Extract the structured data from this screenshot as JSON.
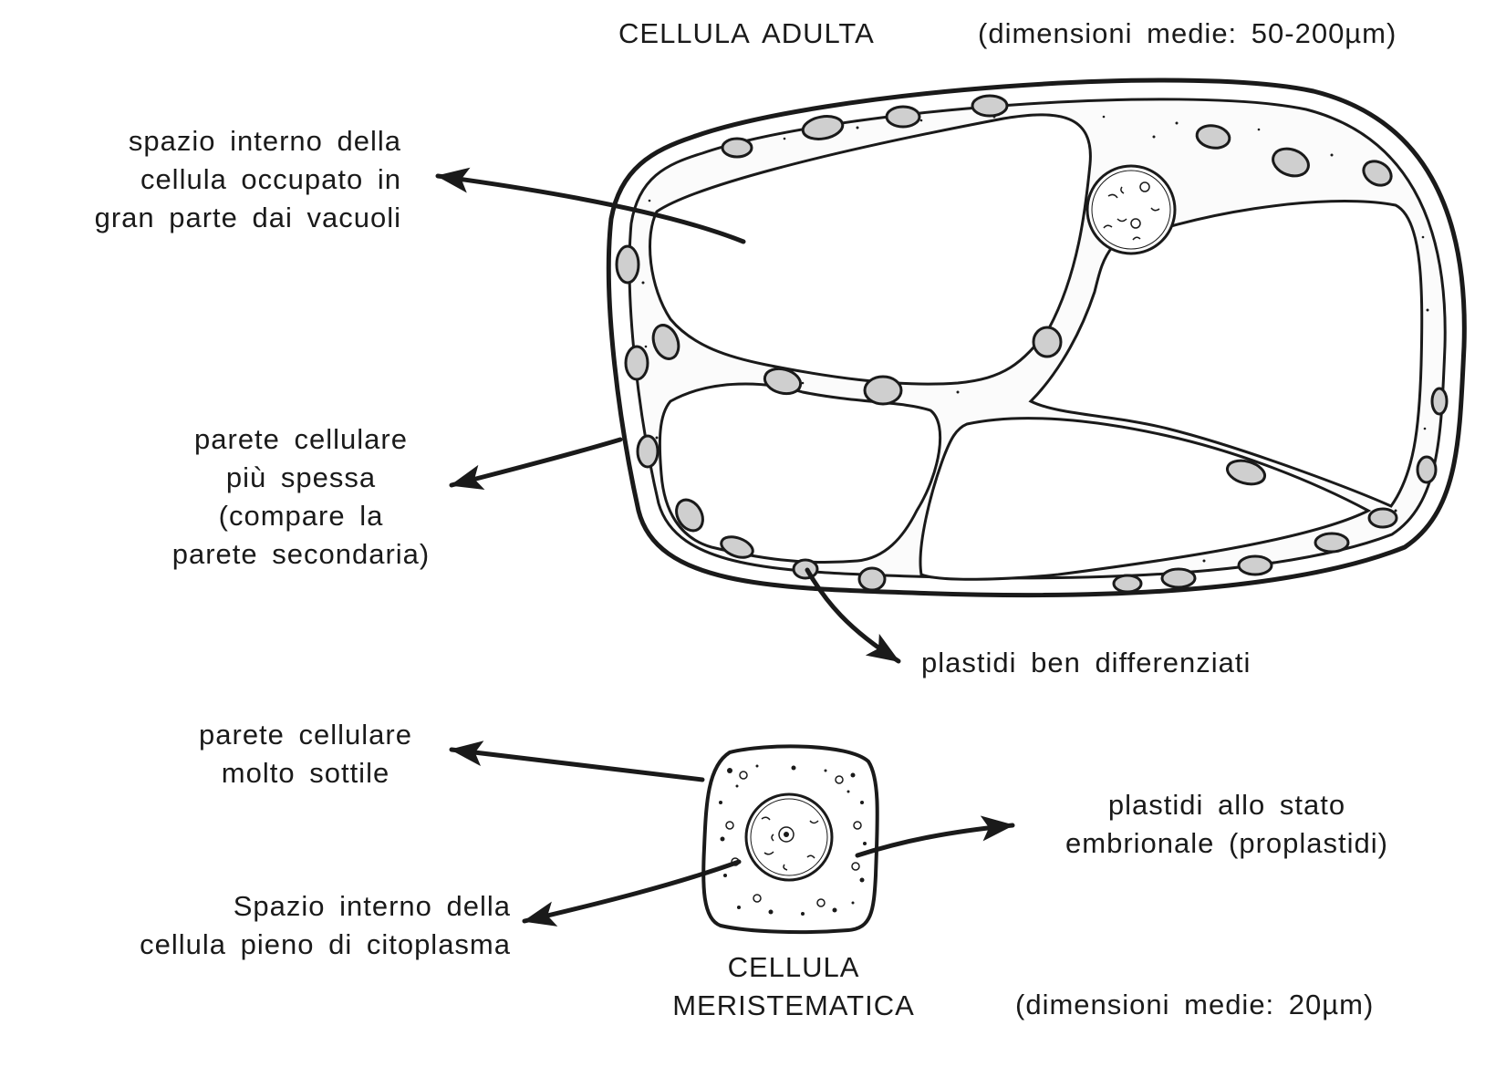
{
  "adult": {
    "title": "CELLULA ADULTA",
    "size": "(dimensioni medie: 50-200µm)"
  },
  "labels": {
    "vacuoli": [
      "spazio interno della",
      "cellula occupato in",
      "gran parte dai vacuoli"
    ],
    "parete_spessa": [
      "parete cellulare",
      "più spessa",
      "(compare la",
      "parete secondaria)"
    ],
    "plastidi_diff": [
      "plastidi ben differenziati"
    ],
    "parete_sottile": [
      "parete cellulare",
      "molto sottile"
    ],
    "citoplasma": [
      "Spazio interno della",
      "cellula pieno di citoplasma"
    ],
    "proplastidi": [
      "plastidi allo stato",
      "embrionale (proplastidi)"
    ]
  },
  "meristem": {
    "title": [
      "CELLULA",
      "MERISTEMATICA"
    ],
    "size": "(dimensioni medie: 20µm)"
  },
  "colors": {
    "ink": "#1a1a1a",
    "plastid": "#cfcfcf",
    "background": "#ffffff"
  }
}
